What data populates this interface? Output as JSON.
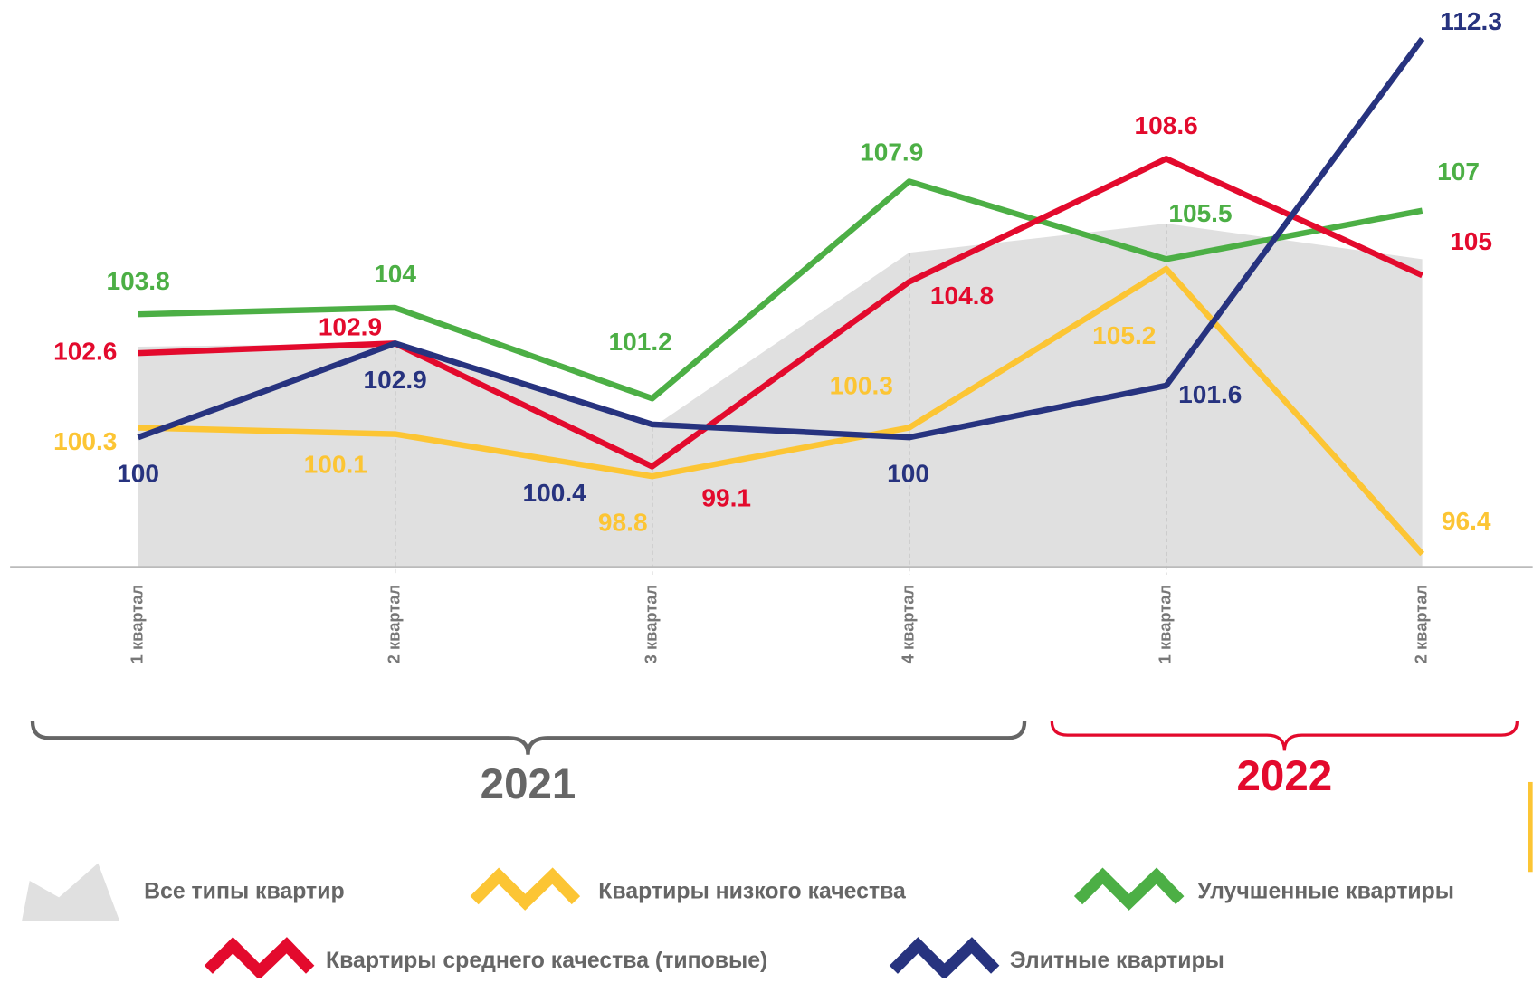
{
  "chart_data": {
    "type": "line",
    "categories": [
      "1 квартал",
      "2 квартал",
      "3 квартал",
      "4 квартал",
      "1 квартал",
      "2 квартал"
    ],
    "periods": [
      "2021",
      "2022"
    ],
    "ylim": [
      96,
      113.5
    ],
    "series": [
      {
        "name": "Все типы квартир",
        "type": "area",
        "color": "#e0e0e0",
        "values": [
          102.8,
          102.9,
          100.3,
          105.7,
          106.6,
          105.5
        ]
      },
      {
        "name": "Квартиры низкого качества",
        "color": "#fcc534",
        "values": [
          100.3,
          100.1,
          98.8,
          100.3,
          105.2,
          96.4
        ]
      },
      {
        "name": "Улучшенные квартиры",
        "color": "#4caf45",
        "values": [
          103.8,
          104.0,
          101.2,
          107.9,
          105.5,
          107.0
        ]
      },
      {
        "name": "Квартиры среднего качества (типовые)",
        "color": "#e30a2d",
        "values": [
          102.6,
          102.9,
          99.1,
          104.8,
          108.6,
          105.0
        ]
      },
      {
        "name": "Элитные квартиры",
        "color": "#27337f",
        "values": [
          100.0,
          102.9,
          100.4,
          100.0,
          101.6,
          112.3
        ]
      }
    ]
  }
}
